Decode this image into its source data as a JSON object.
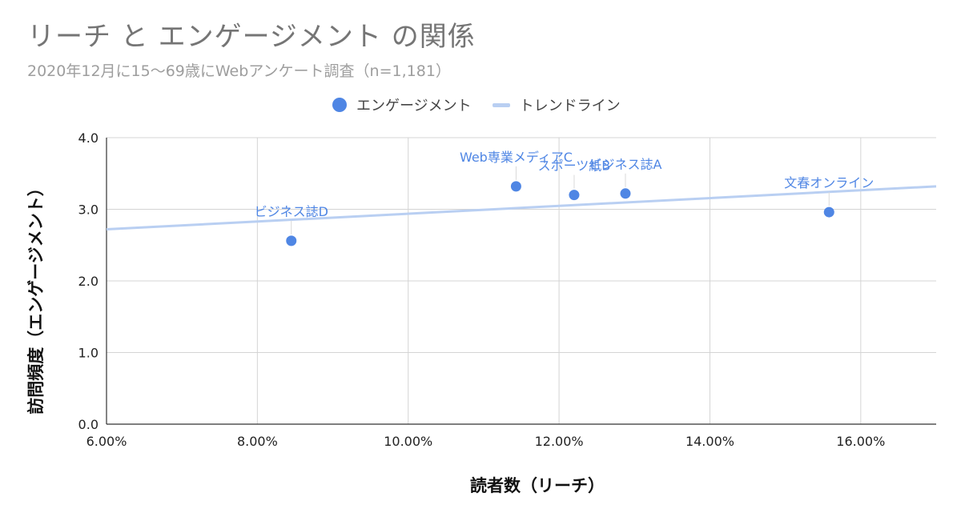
{
  "chart_data": {
    "type": "scatter",
    "title": "リーチ と エンゲージメント の関係",
    "subtitle": "2020年12月に15〜69歳にWebアンケート調査（n=1,181）",
    "xlabel": "読者数（リーチ）",
    "ylabel": "訪問頻度（エンゲージメント）",
    "xlim": [
      0.06,
      0.17
    ],
    "ylim": [
      0,
      4.0
    ],
    "x_ticks": [
      0.06,
      0.08,
      0.1,
      0.12,
      0.14,
      0.16
    ],
    "x_tick_labels": [
      "6.00%",
      "8.00%",
      "10.00%",
      "12.00%",
      "14.00%",
      "16.00%"
    ],
    "y_ticks": [
      0,
      1,
      2,
      3,
      4
    ],
    "y_tick_labels": [
      "0.0",
      "1.0",
      "2.0",
      "3.0",
      "4.0"
    ],
    "grid": true,
    "legend_position": "top",
    "series": [
      {
        "name": "エンゲージメント",
        "color": "#4f86e4",
        "points": [
          {
            "x": 0.0845,
            "y": 2.56,
            "label": "ビジネス誌D"
          },
          {
            "x": 0.1143,
            "y": 3.32,
            "label": "Web専業メディアC"
          },
          {
            "x": 0.122,
            "y": 3.2,
            "label": "スポーツ紙B"
          },
          {
            "x": 0.1288,
            "y": 3.22,
            "label": "ビジネス誌A"
          },
          {
            "x": 0.1558,
            "y": 2.96,
            "label": "文春オンライン"
          }
        ]
      },
      {
        "name": "トレンドライン",
        "color": "#b9cff2",
        "type": "line",
        "points": [
          {
            "x": 0.06,
            "y": 2.72
          },
          {
            "x": 0.17,
            "y": 3.32
          }
        ]
      }
    ]
  }
}
